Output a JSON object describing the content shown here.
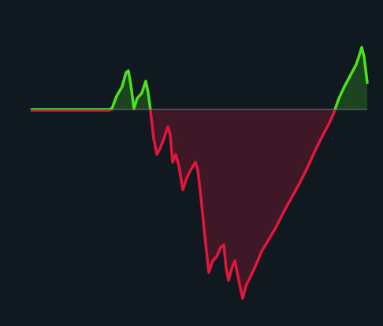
{
  "chart_data": {
    "type": "line",
    "x": [
      40,
      138,
      142,
      148,
      155,
      160,
      163,
      166,
      170,
      174,
      180,
      185,
      188,
      191,
      195,
      199,
      203,
      208,
      213,
      216,
      219,
      223,
      227,
      232,
      237,
      242,
      248,
      251,
      255,
      260,
      265,
      270,
      275,
      280,
      284,
      287,
      290,
      294,
      298,
      301,
      305,
      308,
      312,
      318,
      325,
      332,
      340,
      350,
      360,
      370,
      380,
      390,
      400,
      410,
      418,
      425,
      430,
      437,
      445,
      452,
      456,
      459,
      462,
      466
    ],
    "values": [
      0,
      0,
      1,
      17,
      29,
      47,
      49,
      31,
      1,
      14,
      21,
      36,
      21,
      -1,
      -36,
      -56,
      -49,
      -36,
      -21,
      -31,
      -66,
      -56,
      -71,
      -101,
      -86,
      -76,
      -66,
      -76,
      -111,
      -161,
      -206,
      -191,
      -186,
      -174,
      -171,
      -201,
      -216,
      -201,
      -191,
      -206,
      -226,
      -239,
      -223,
      -211,
      -196,
      -179,
      -166,
      -149,
      -129,
      -111,
      -93,
      -73,
      -51,
      -31,
      -16,
      0,
      14,
      29,
      44,
      57,
      69,
      79,
      67,
      34
    ],
    "xlim": [
      40,
      466
    ],
    "ylim": [
      -250,
      100
    ],
    "positive_color": "#4be31b",
    "negative_color": "#e3173c",
    "positive_fill": "#1d4420",
    "negative_fill": "#3e1826",
    "baseline_color": "#5a5f66"
  }
}
